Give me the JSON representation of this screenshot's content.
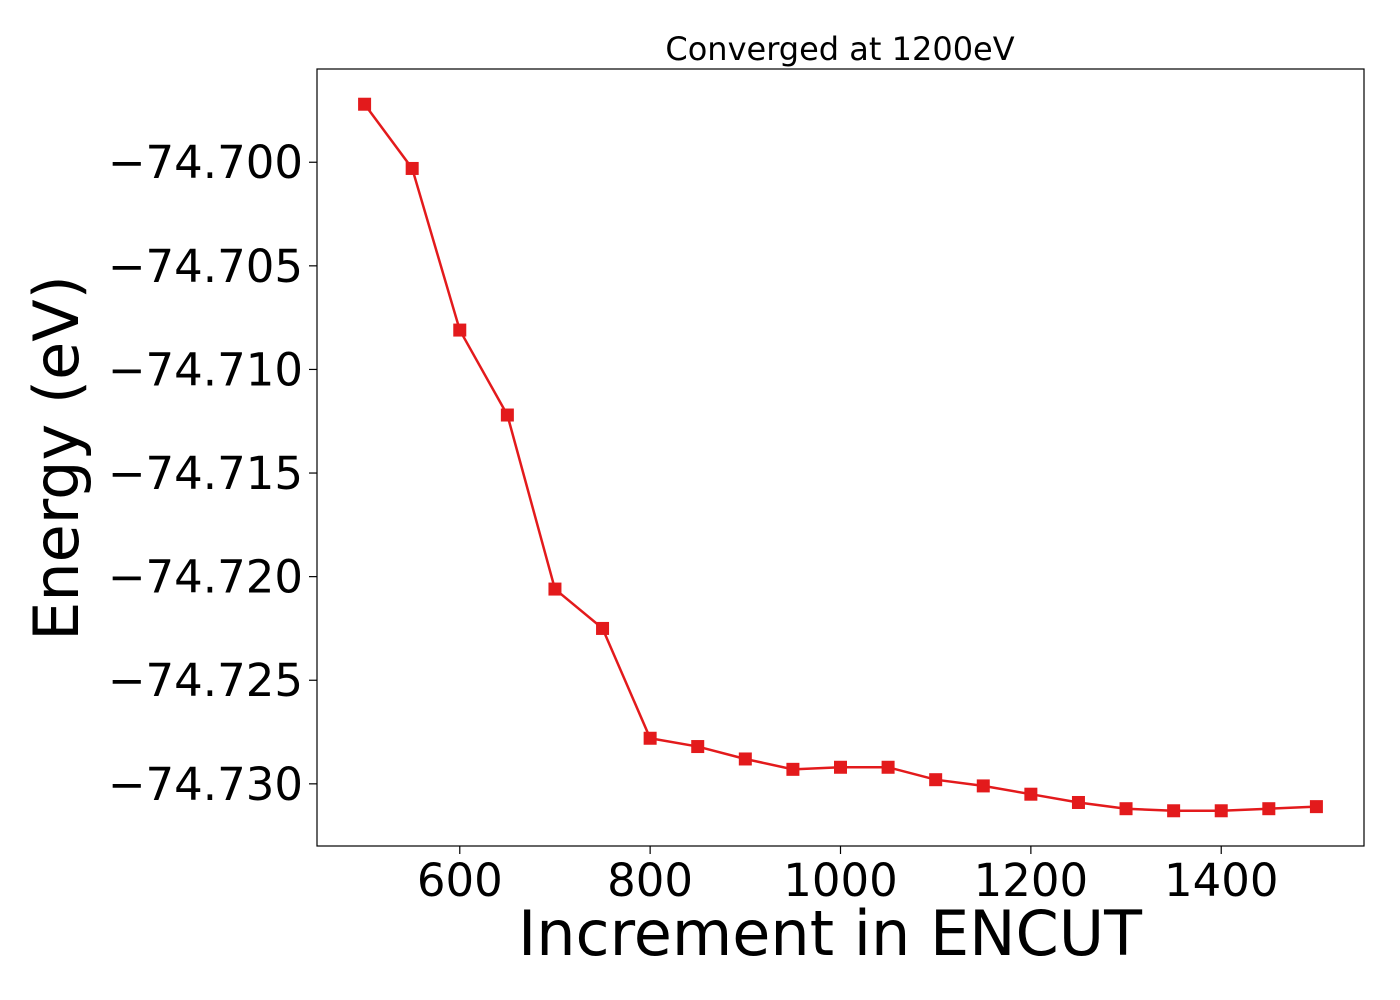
{
  "chart_data": {
    "type": "line",
    "title": "Converged at 1200eV",
    "xlabel": "Increment in ENCUT",
    "ylabel": "Energy (eV)",
    "xlim": [
      450,
      1550
    ],
    "ylim": [
      -74.733,
      -74.6955
    ],
    "xticks": [
      600,
      800,
      1000,
      1200,
      1400
    ],
    "yticks": [
      -74.7,
      -74.705,
      -74.71,
      -74.715,
      -74.72,
      -74.725,
      -74.73
    ],
    "ytick_labels": [
      "−74.700",
      "−74.705",
      "−74.710",
      "−74.715",
      "−74.720",
      "−74.725",
      "−74.730"
    ],
    "grid": false,
    "series": [
      {
        "color": "#e31a1c",
        "marker": "square",
        "x": [
          500,
          550,
          600,
          650,
          700,
          750,
          800,
          850,
          900,
          950,
          1000,
          1050,
          1100,
          1150,
          1200,
          1250,
          1300,
          1350,
          1400,
          1450,
          1500
        ],
        "y": [
          -74.6972,
          -74.7003,
          -74.7081,
          -74.7122,
          -74.7206,
          -74.7225,
          -74.7278,
          -74.7282,
          -74.7288,
          -74.7293,
          -74.7292,
          -74.7292,
          -74.7298,
          -74.7301,
          -74.7305,
          -74.7309,
          -74.7312,
          -74.7313,
          -74.7313,
          -74.7312,
          -74.7311
        ]
      }
    ]
  }
}
